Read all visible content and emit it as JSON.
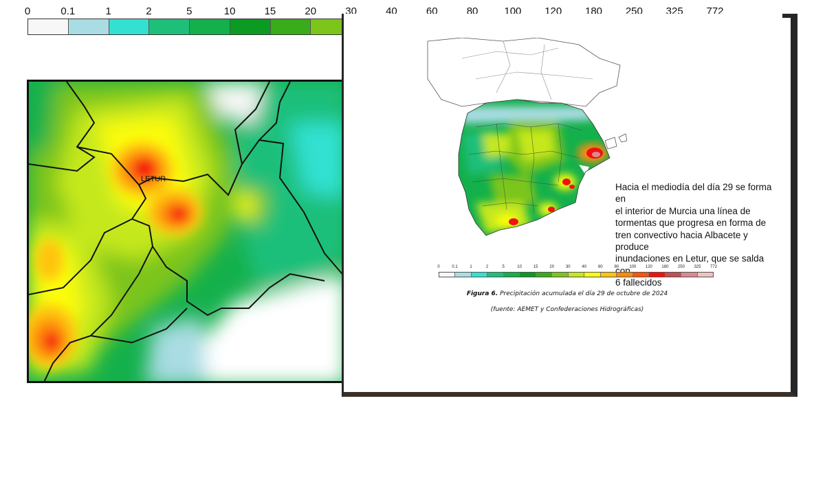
{
  "legend": {
    "ticks": [
      "0",
      "0.1",
      "1",
      "2",
      "5",
      "10",
      "15",
      "20",
      "30",
      "40",
      "60",
      "80",
      "100",
      "120",
      "180",
      "250",
      "325",
      "772"
    ],
    "colors": [
      "#f7f7f7",
      "#a9dce3",
      "#33e1d1",
      "#1fbf7a",
      "#14b04c",
      "#0b9a22",
      "#3aab1a",
      "#7cc51b",
      "#c4e81d",
      "#fcfc10",
      "#fec40f",
      "#fe8a08",
      "#fe5309",
      "#f50f0e",
      "#c54d55",
      "#d98a8f",
      "#eec1c3"
    ]
  },
  "zoom_map": {
    "label": "LETUR"
  },
  "caption": {
    "lines": [
      "Hacia el mediodía del día 29 se forma en",
      "el interior de Murcia una línea de",
      "tormentas que progresa en forma de",
      "tren convectivo hacia Albacete y",
      "produce",
      "inundaciones en Letur, que se salda con",
      "6 fallecidos"
    ]
  },
  "figure": {
    "label": "Figura 6.",
    "title": "Precipitación acumulada el día 29 de octubre de 2024",
    "source": "(fuente: AEMET y Confederaciones Hidrográficas)"
  }
}
